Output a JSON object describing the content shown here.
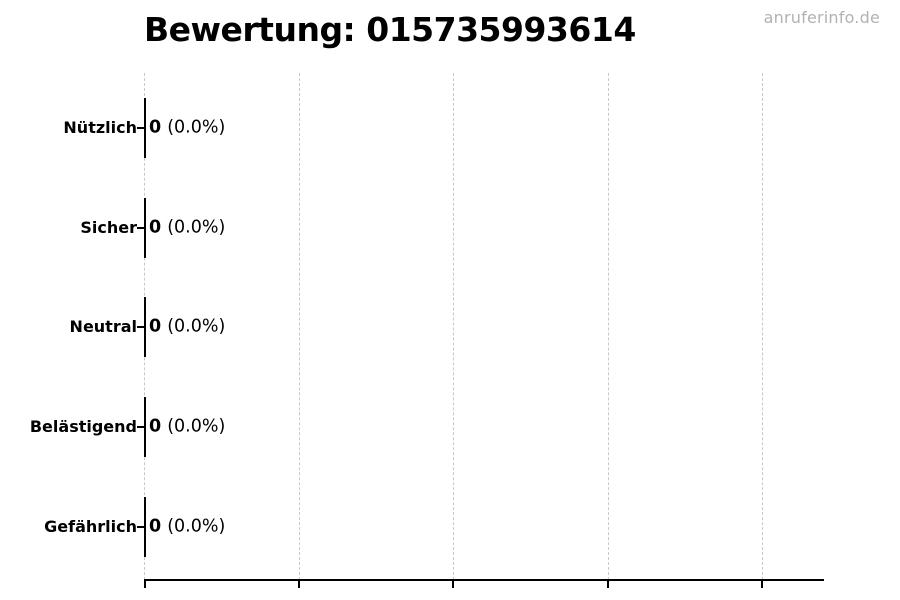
{
  "watermark": "anruferinfo.de",
  "chart_data": {
    "type": "bar",
    "orientation": "horizontal",
    "title": "Bewertung: 015735993614",
    "title_align": "left",
    "categories": [
      "Nützlich",
      "Sicher",
      "Neutral",
      "Belästigend",
      "Gefährlich"
    ],
    "values": [
      0,
      0,
      0,
      0,
      0
    ],
    "percentages": [
      0.0,
      0.0,
      0.0,
      0.0,
      0.0
    ],
    "value_label_format": "count (percent%)",
    "rows": [
      {
        "label": "Nützlich",
        "value": "0",
        "pct": "(0.0%)"
      },
      {
        "label": "Sicher",
        "value": "0",
        "pct": "(0.0%)"
      },
      {
        "label": "Neutral",
        "value": "0",
        "pct": "(0.0%)"
      },
      {
        "label": "Belästigend",
        "value": "0",
        "pct": "(0.0%)"
      },
      {
        "label": "Gefährlich",
        "value": "0",
        "pct": "(0.0%)"
      }
    ],
    "x_axis": {
      "tick_count": 5,
      "tick_labels": [],
      "labeled": false
    },
    "grid": {
      "vertical": true,
      "style": "dashed",
      "horizontal": false
    },
    "legend": "none"
  },
  "colors": {
    "background": "#ffffff",
    "text": "#000000",
    "watermark": "#b2b2b2",
    "gridline": "#c9c9c9",
    "axis": "#000000"
  }
}
